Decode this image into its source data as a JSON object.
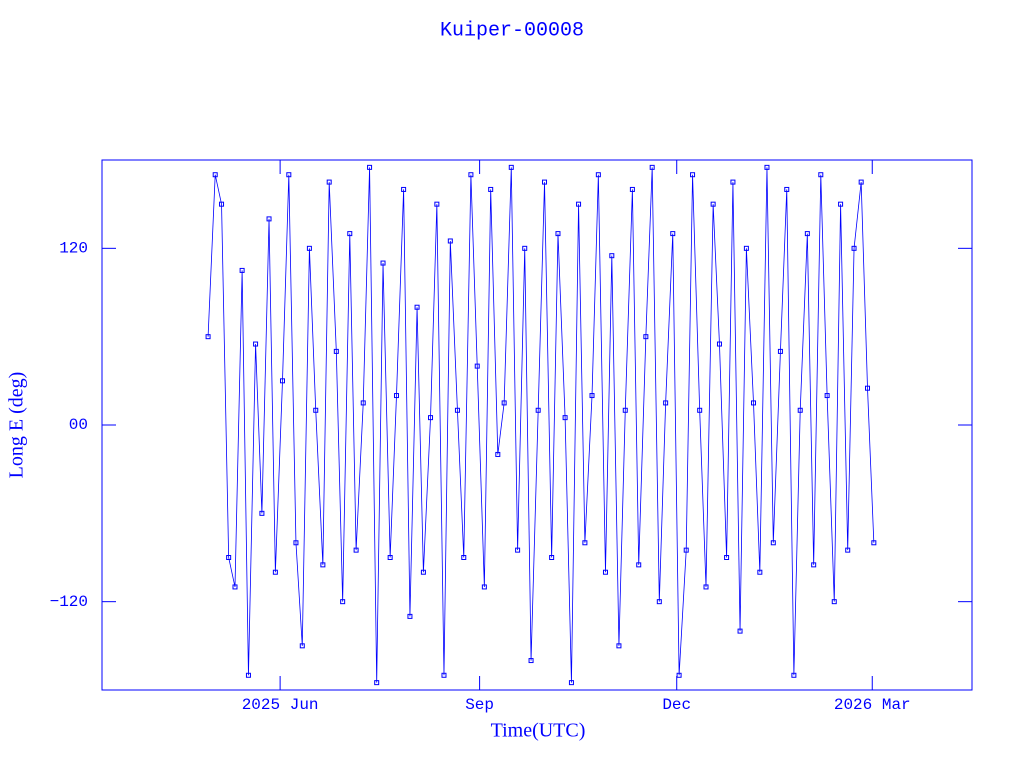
{
  "chart_data": {
    "type": "line",
    "title": "Kuiper-00008",
    "x_label": "Time(UTC)",
    "y_label": "Long E (deg)",
    "xlim": [
      2025.189,
      2026.288
    ],
    "ylim": [
      -180,
      180
    ],
    "xticks": [
      {
        "value": 2025.414,
        "label": "2025 Jun"
      },
      {
        "value": 2025.666,
        "label": "Sep"
      },
      {
        "value": 2025.915,
        "label": "Dec"
      },
      {
        "value": 2026.162,
        "label": "2026 Mar"
      }
    ],
    "yticks": [
      {
        "value": -120,
        "label": "−120"
      },
      {
        "value": 0,
        "label": "00"
      },
      120
    ],
    "series": [
      {
        "name": "Kuiper-00008",
        "color": "#0000ff",
        "x": [
          2025.323,
          2025.332,
          2025.34,
          2025.349,
          2025.357,
          2025.366,
          2025.374,
          2025.383,
          2025.391,
          2025.4,
          2025.408,
          2025.417,
          2025.425,
          2025.434,
          2025.442,
          2025.451,
          2025.459,
          2025.468,
          2025.476,
          2025.485,
          2025.493,
          2025.502,
          2025.51,
          2025.519,
          2025.527,
          2025.536,
          2025.544,
          2025.553,
          2025.561,
          2025.57,
          2025.578,
          2025.587,
          2025.595,
          2025.604,
          2025.612,
          2025.621,
          2025.629,
          2025.638,
          2025.646,
          2025.655,
          2025.663,
          2025.672,
          2025.68,
          2025.689,
          2025.697,
          2025.706,
          2025.714,
          2025.723,
          2025.731,
          2025.74,
          2025.748,
          2025.757,
          2025.765,
          2025.774,
          2025.782,
          2025.791,
          2025.799,
          2025.808,
          2025.816,
          2025.825,
          2025.833,
          2025.842,
          2025.85,
          2025.859,
          2025.867,
          2025.876,
          2025.884,
          2025.893,
          2025.901,
          2025.91,
          2025.918,
          2025.927,
          2025.935,
          2025.944,
          2025.952,
          2025.961,
          2025.969,
          2025.978,
          2025.986,
          2025.995,
          2026.003,
          2026.012,
          2026.02,
          2026.029,
          2026.037,
          2026.046,
          2026.054,
          2026.063,
          2026.071,
          2026.08,
          2026.088,
          2026.097,
          2026.105,
          2026.114,
          2026.122,
          2026.131,
          2026.139,
          2026.148,
          2026.156,
          2026.164
        ],
        "values": [
          60,
          170,
          150,
          -90,
          -110,
          105,
          -170,
          55,
          -60,
          140,
          -100,
          30,
          170,
          -80,
          -150,
          120,
          10,
          -95,
          165,
          50,
          -120,
          130,
          -85,
          15,
          175,
          -175,
          110,
          -90,
          20,
          160,
          -130,
          80,
          -100,
          5,
          150,
          -170,
          125,
          10,
          -90,
          170,
          40,
          -110,
          160,
          -20,
          15,
          175,
          -85,
          120,
          -160,
          10,
          165,
          -90,
          130,
          5,
          -175,
          150,
          -80,
          20,
          170,
          -100,
          115,
          -150,
          10,
          160,
          -95,
          60,
          175,
          -120,
          15,
          130,
          -170,
          -85,
          170,
          10,
          -110,
          150,
          55,
          -90,
          165,
          -140,
          120,
          15,
          -100,
          175,
          -80,
          50,
          160,
          -170,
          10,
          130,
          -95,
          170,
          20,
          -120,
          150,
          -85,
          120,
          165,
          25,
          -80
        ]
      }
    ]
  }
}
